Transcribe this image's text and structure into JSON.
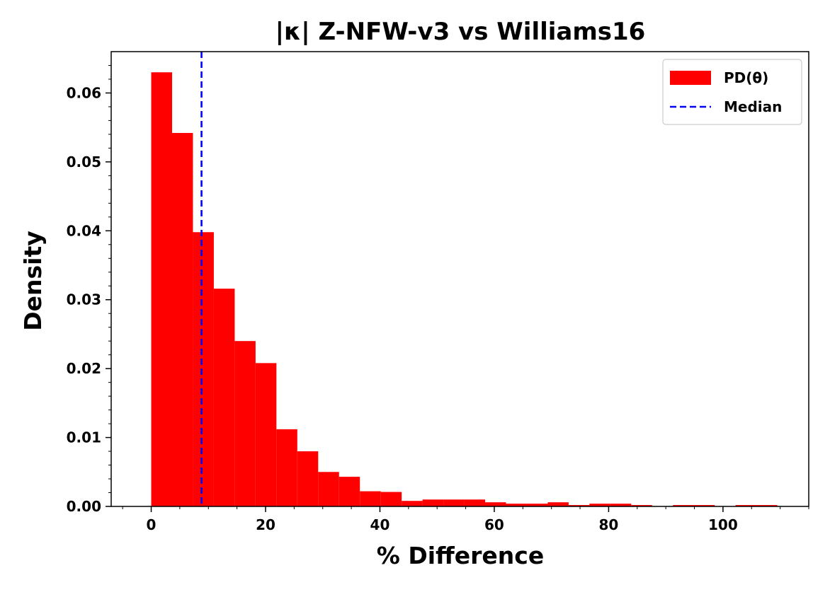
{
  "chart_data": {
    "type": "bar",
    "title": "|κ| Z-NFW-v3 vs Williams16",
    "xlabel": "% Difference",
    "ylabel": "Density",
    "xlim": [
      -7,
      115
    ],
    "ylim": [
      0,
      0.066
    ],
    "xticks": [
      0,
      20,
      40,
      60,
      80,
      100
    ],
    "yticks": [
      0.0,
      0.01,
      0.02,
      0.03,
      0.04,
      0.05,
      0.06
    ],
    "xtick_labels": [
      "0",
      "20",
      "40",
      "60",
      "80",
      "100"
    ],
    "ytick_labels": [
      "0.00",
      "0.01",
      "0.02",
      "0.03",
      "0.04",
      "0.05",
      "0.06"
    ],
    "grid": false,
    "legend_position": "top-right",
    "series": [
      {
        "name": "PD(θ)",
        "kind": "histogram",
        "color": "#ff0000",
        "bin_width": 3.65,
        "bin_start": 0,
        "values": [
          0.063,
          0.0542,
          0.0398,
          0.0316,
          0.024,
          0.0208,
          0.0112,
          0.008,
          0.005,
          0.0043,
          0.0022,
          0.0021,
          0.0008,
          0.001,
          0.001,
          0.001,
          0.0006,
          0.0004,
          0.0004,
          0.0006,
          0.0002,
          0.0004,
          0.0004,
          0.0002,
          0.0,
          0.0002,
          0.0002,
          0.0,
          0.0002,
          0.0002
        ]
      },
      {
        "name": "Median",
        "kind": "vline",
        "color": "#0000ff",
        "line_style": "dashed",
        "x": 8.8
      }
    ]
  }
}
